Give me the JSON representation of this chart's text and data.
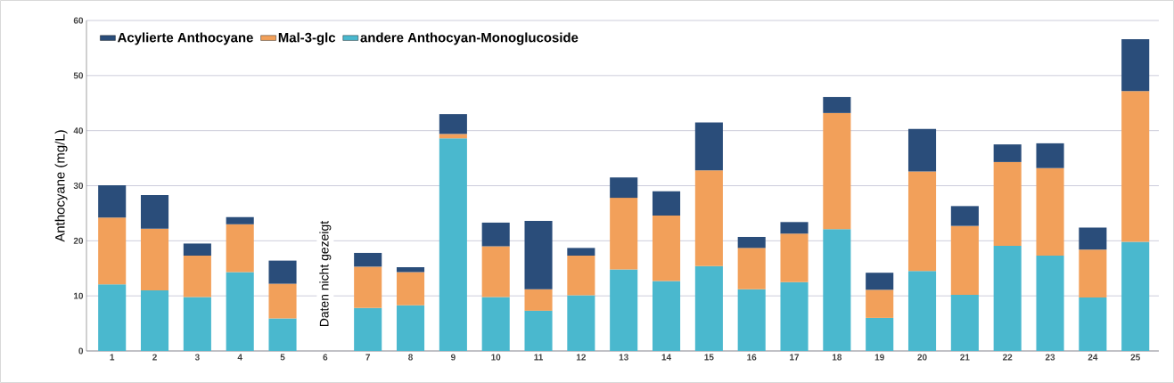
{
  "chart_data": {
    "type": "bar",
    "stacked": true,
    "ylabel": "Anthocyane (mg/L)",
    "categories": [
      "1",
      "2",
      "3",
      "4",
      "5",
      "6",
      "7",
      "8",
      "9",
      "10",
      "11",
      "12",
      "13",
      "14",
      "15",
      "16",
      "17",
      "18",
      "19",
      "20",
      "21",
      "22",
      "23",
      "24",
      "25"
    ],
    "series": [
      {
        "name": "andere Anthocyan-Monoglucoside",
        "color": "#4ab8ce",
        "values": [
          12.1,
          11.0,
          9.8,
          14.3,
          5.9,
          null,
          7.8,
          8.3,
          38.6,
          9.8,
          7.3,
          10.1,
          14.8,
          12.7,
          15.4,
          11.2,
          12.5,
          22.1,
          6.0,
          14.5,
          10.2,
          19.1,
          17.3,
          9.7,
          19.8
        ]
      },
      {
        "name": "Mal-3-glc",
        "color": "#f2a05a",
        "values": [
          12.1,
          11.2,
          7.5,
          8.7,
          6.3,
          null,
          7.5,
          6.0,
          0.8,
          9.2,
          3.9,
          7.2,
          13.0,
          11.9,
          17.4,
          7.5,
          8.8,
          21.1,
          5.1,
          18.1,
          12.5,
          15.2,
          15.9,
          8.7,
          27.4
        ]
      },
      {
        "name": "Acylierte Anthocyane",
        "color": "#2a4d7a",
        "values": [
          5.9,
          6.1,
          2.2,
          1.3,
          4.2,
          null,
          2.5,
          0.9,
          3.6,
          4.3,
          12.4,
          1.4,
          3.7,
          4.4,
          8.7,
          2.0,
          2.1,
          2.9,
          3.1,
          7.7,
          3.6,
          3.2,
          4.5,
          4.0,
          9.4
        ]
      }
    ],
    "ylim": [
      0,
      60
    ],
    "yticks": [
      0,
      10,
      20,
      30,
      40,
      50,
      60
    ],
    "grid": "y",
    "legend": "top left",
    "annotations": [
      "Daten nicht gezeigt"
    ]
  }
}
